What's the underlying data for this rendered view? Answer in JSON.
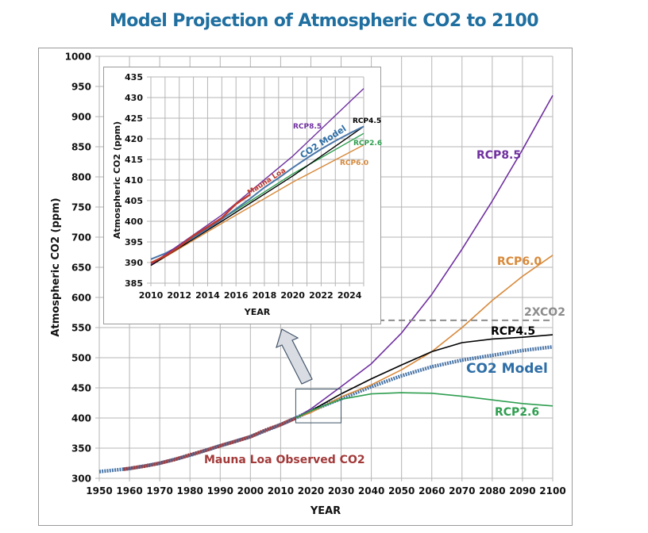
{
  "chart_data": [
    {
      "id": "main",
      "type": "line",
      "title": "Model Projection of Atmospheric CO2 to 2100",
      "xlabel": "YEAR",
      "ylabel": "Atmospheric CO2 (ppm)",
      "xlim": [
        1950,
        2100
      ],
      "ylim": [
        300,
        1000
      ],
      "xticks": [
        1950,
        1960,
        1970,
        1980,
        1990,
        2000,
        2010,
        2020,
        2030,
        2040,
        2050,
        2060,
        2070,
        2080,
        2090,
        2100
      ],
      "yticks": [
        300,
        350,
        400,
        450,
        500,
        550,
        600,
        650,
        700,
        750,
        800,
        850,
        900,
        950,
        1000
      ],
      "grid": true,
      "series": [
        {
          "name": "CO2 Model",
          "label": "CO2 Model",
          "color": "#4a76a8",
          "style": "thick-dotted",
          "x": [
            1950,
            1960,
            1970,
            1980,
            1990,
            2000,
            2010,
            2015,
            2020,
            2030,
            2040,
            2050,
            2060,
            2070,
            2080,
            2090,
            2100
          ],
          "y": [
            311,
            316,
            325,
            338,
            354,
            369,
            389,
            400,
            412,
            432,
            452,
            470,
            485,
            496,
            504,
            512,
            518
          ]
        },
        {
          "name": "Mauna Loa Observed CO2",
          "label": "Mauna Loa Observed CO2",
          "color": "#a33a3a",
          "style": "thick-dotted",
          "x": [
            1958,
            1965,
            1970,
            1975,
            1980,
            1985,
            1990,
            1995,
            2000,
            2005,
            2010,
            2015
          ],
          "y": [
            315,
            320,
            325,
            331,
            339,
            346,
            354,
            361,
            369,
            380,
            389,
            400
          ]
        },
        {
          "name": "RCP8.5",
          "label": "RCP8.5",
          "color": "#7030a0",
          "style": "solid",
          "x": [
            2015,
            2020,
            2030,
            2040,
            2050,
            2060,
            2070,
            2080,
            2090,
            2100
          ],
          "y": [
            400,
            415,
            452,
            490,
            541,
            605,
            680,
            760,
            845,
            935
          ]
        },
        {
          "name": "RCP6.0",
          "label": "RCP6.0",
          "color": "#d8893a",
          "style": "solid",
          "x": [
            2015,
            2020,
            2030,
            2040,
            2050,
            2060,
            2070,
            2080,
            2090,
            2100
          ],
          "y": [
            400,
            409,
            435,
            455,
            480,
            510,
            550,
            595,
            635,
            670
          ]
        },
        {
          "name": "RCP4.5",
          "label": "RCP4.5",
          "color": "#000000",
          "style": "solid",
          "x": [
            2015,
            2020,
            2030,
            2040,
            2050,
            2060,
            2070,
            2080,
            2090,
            2100
          ],
          "y": [
            400,
            412,
            440,
            465,
            488,
            510,
            525,
            531,
            534,
            538
          ]
        },
        {
          "name": "RCP2.6",
          "label": "RCP2.6",
          "color": "#2e9e4f",
          "style": "solid",
          "x": [
            2015,
            2020,
            2030,
            2040,
            2050,
            2060,
            2070,
            2080,
            2090,
            2100
          ],
          "y": [
            400,
            412,
            431,
            440,
            442,
            441,
            436,
            430,
            424,
            420
          ]
        },
        {
          "name": "2XCO2",
          "label": "2XCO2",
          "color": "#8c8c8c",
          "style": "dashed",
          "x": [
            2032,
            2100
          ],
          "y": [
            562,
            562
          ]
        }
      ],
      "annotations": [
        {
          "text": "Mauna Loa Observed CO2",
          "color": "#a33a3a"
        },
        {
          "text": "CO2 Model",
          "color": "#2e6ea6"
        },
        {
          "text": "RCP8.5",
          "color": "#7030a0"
        },
        {
          "text": "RCP6.0",
          "color": "#d8893a"
        },
        {
          "text": "RCP4.5",
          "color": "#000000"
        },
        {
          "text": "RCP2.6",
          "color": "#2e9e4f"
        },
        {
          "text": "2XCO2",
          "color": "#8c8c8c"
        }
      ],
      "zoom_box": {
        "x": [
          2015,
          2030
        ],
        "y": [
          392,
          448
        ]
      }
    },
    {
      "id": "inset",
      "type": "line",
      "title": "",
      "xlabel": "YEAR",
      "ylabel": "Atmospheric CO2 (ppm)",
      "xlim": [
        2010,
        2025
      ],
      "ylim": [
        385,
        435
      ],
      "xticks": [
        2010,
        2012,
        2014,
        2016,
        2018,
        2020,
        2022,
        2024
      ],
      "yticks": [
        385,
        390,
        395,
        400,
        405,
        410,
        415,
        420,
        425,
        430,
        435
      ],
      "grid": true,
      "series": [
        {
          "name": "RCP6.0",
          "label": "RCP6.0",
          "color": "#d8893a",
          "x": [
            2010,
            2015,
            2020,
            2025
          ],
          "y": [
            389.3,
            399.5,
            409.5,
            418.5
          ]
        },
        {
          "name": "RCP2.6",
          "label": "RCP2.6",
          "color": "#2e9e4f",
          "x": [
            2010,
            2015,
            2020,
            2025
          ],
          "y": [
            389.5,
            400.5,
            411.5,
            421.3
          ]
        },
        {
          "name": "RCP4.5",
          "label": "RCP4.5",
          "color": "#000000",
          "x": [
            2010,
            2015,
            2020,
            2025
          ],
          "y": [
            389.3,
            400.0,
            411.0,
            423.0
          ]
        },
        {
          "name": "CO2 Model",
          "label": "CO2 Model",
          "color": "#4a76a8",
          "x": [
            2010,
            2011,
            2012,
            2013,
            2014,
            2015,
            2016,
            2017,
            2018,
            2019,
            2020,
            2021,
            2022,
            2023,
            2024,
            2025
          ],
          "y": [
            390.8,
            392.2,
            394.0,
            396.0,
            398.2,
            400.5,
            403.0,
            405.5,
            408.2,
            410.5,
            413.0,
            415.3,
            417.5,
            419.5,
            421.3,
            423.0
          ]
        },
        {
          "name": "RCP8.5",
          "label": "RCP8.5",
          "color": "#7030a0",
          "x": [
            2010,
            2015,
            2020,
            2025
          ],
          "y": [
            389.5,
            401.5,
            415.8,
            432.2
          ]
        },
        {
          "name": "Mauna Loa",
          "label": "Mauna Loa",
          "color": "#c0392b",
          "x": [
            2010,
            2011,
            2012,
            2013,
            2014,
            2015,
            2016,
            2017
          ],
          "y": [
            389.9,
            391.6,
            393.8,
            396.5,
            398.6,
            400.8,
            404.2,
            406.5
          ]
        }
      ]
    }
  ]
}
